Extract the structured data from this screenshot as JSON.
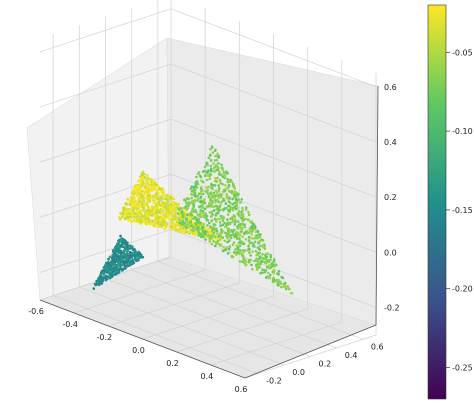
{
  "chart_data": {
    "type": "scatter",
    "projection": "3d",
    "title": "",
    "xlabel": "",
    "ylabel": "",
    "zlabel": "",
    "grid": true,
    "xlim": [
      -0.6,
      0.6
    ],
    "ylim": [
      -0.3,
      0.7
    ],
    "zlim": [
      -0.3,
      0.65
    ],
    "x_ticks": [
      "-0.6",
      "-0.4",
      "-0.2",
      "0.0",
      "0.2",
      "0.4",
      "0.6"
    ],
    "y_ticks": [
      "-0.2",
      "0.0",
      "0.2",
      "0.4",
      "0.6"
    ],
    "z_ticks": [
      "-0.2",
      "0.0",
      "0.2",
      "0.4",
      "0.6"
    ],
    "colormap": "viridis",
    "colorbar": {
      "range": [
        -0.27,
        -0.02
      ],
      "ticks": [
        "-0.05",
        "-0.10",
        "-0.15",
        "-0.20",
        "-0.25"
      ],
      "colors": [
        "#440154",
        "#3b528b",
        "#21918c",
        "#5ec962",
        "#fde725"
      ]
    },
    "clusters": [
      {
        "name": "",
        "color_value": -0.03,
        "corners": [
          [
            -0.38,
            0.2,
            0.14
          ],
          [
            0.05,
            0.25,
            -0.02
          ],
          [
            -0.38,
            0.0,
            0.0
          ]
        ]
      },
      {
        "name": "",
        "color_value": -0.07,
        "corners": [
          [
            -0.05,
            0.3,
            0.3
          ],
          [
            0.5,
            0.2,
            -0.1
          ],
          [
            -0.28,
            0.3,
            -0.03
          ]
        ]
      },
      {
        "name": "",
        "color_value": -0.15,
        "corners": [
          [
            -0.32,
            -0.05,
            -0.04
          ],
          [
            -0.22,
            0.0,
            -0.1
          ],
          [
            -0.45,
            -0.1,
            -0.26
          ]
        ]
      }
    ]
  }
}
